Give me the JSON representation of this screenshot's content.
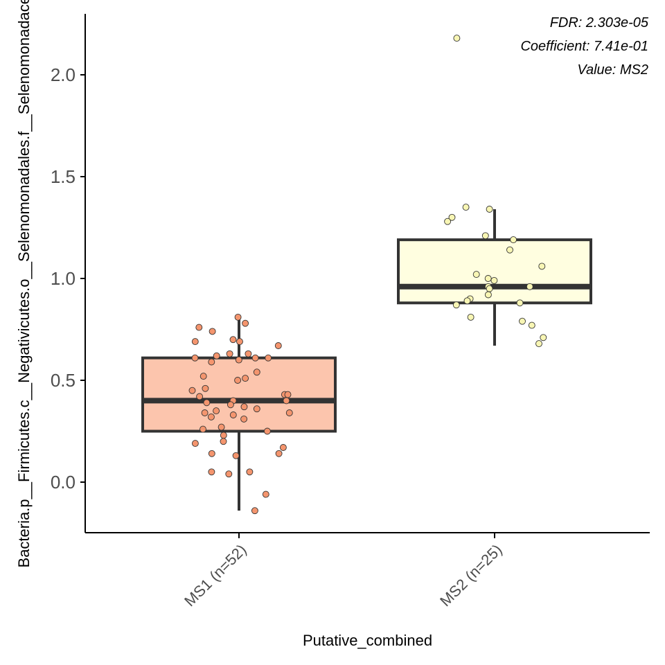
{
  "chart_data": {
    "type": "box",
    "xlabel": "Putative_combined",
    "ylabel": "Bacteria.p__Firmicutes.c__Negativicutes.o__Selenomonadales.f__Selenomonadaceae",
    "ylim": [
      -0.25,
      2.3
    ],
    "y_ticks": [
      0.0,
      0.5,
      1.0,
      1.5,
      2.0
    ],
    "y_tick_labels": [
      "0.0",
      "0.5",
      "1.0",
      "1.5",
      "2.0"
    ],
    "annotations": [
      "FDR: 2.303e-05",
      "Coefficient: 7.41e-01",
      "Value: MS2"
    ],
    "grid": false,
    "legend": "none",
    "groups": [
      {
        "label": "MS1 (n=52)",
        "fill": "#fcc5ad",
        "point_color": "#f4956e",
        "q1": 0.25,
        "median": 0.4,
        "q3": 0.61,
        "whisker_low": -0.14,
        "whisker_high": 0.81,
        "points": [
          0.81,
          0.78,
          0.76,
          0.74,
          0.7,
          0.69,
          0.69,
          0.67,
          0.63,
          0.63,
          0.62,
          0.61,
          0.61,
          0.61,
          0.6,
          0.59,
          0.54,
          0.52,
          0.51,
          0.5,
          0.46,
          0.45,
          0.43,
          0.43,
          0.42,
          0.4,
          0.4,
          0.39,
          0.38,
          0.37,
          0.36,
          0.35,
          0.34,
          0.34,
          0.33,
          0.32,
          0.31,
          0.27,
          0.26,
          0.25,
          0.23,
          0.2,
          0.19,
          0.17,
          0.14,
          0.14,
          0.13,
          0.05,
          0.05,
          0.04,
          -0.06,
          -0.14
        ]
      },
      {
        "label": "MS2 (n=25)",
        "fill": "#fffee0",
        "point_color": "#f8f6b4",
        "q1": 0.88,
        "median": 0.96,
        "q3": 1.19,
        "whisker_low": 0.67,
        "whisker_high": 1.34,
        "points": [
          2.18,
          1.35,
          1.34,
          1.3,
          1.28,
          1.21,
          1.19,
          1.14,
          1.06,
          1.02,
          1.0,
          0.99,
          0.96,
          0.96,
          0.95,
          0.92,
          0.9,
          0.89,
          0.88,
          0.87,
          0.81,
          0.79,
          0.77,
          0.71,
          0.68
        ]
      }
    ]
  }
}
